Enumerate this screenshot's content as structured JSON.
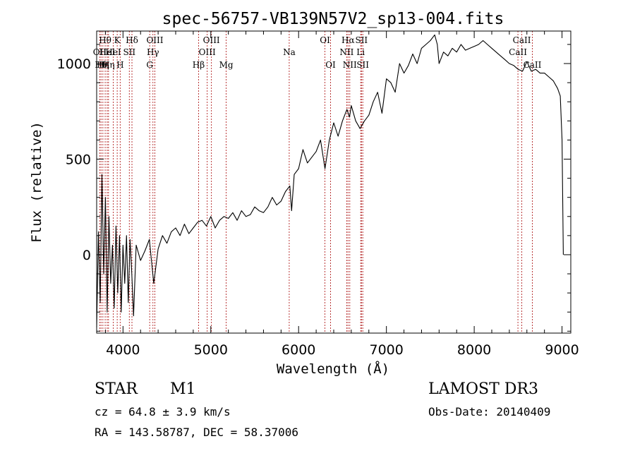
{
  "chart_data": {
    "type": "line",
    "title": "spec-56757-VB139N57V2_sp13-004.fits",
    "xlabel": "Wavelength (Å)",
    "ylabel": "Flux (relative)",
    "xlim": [
      3700,
      9100
    ],
    "ylim": [
      -410,
      1170
    ],
    "x_ticks": [
      4000,
      5000,
      6000,
      7000,
      8000,
      9000
    ],
    "y_ticks": [
      0,
      500,
      1000
    ],
    "x_tick_labels": [
      "4000",
      "5000",
      "6000",
      "7000",
      "8000",
      "9000"
    ],
    "y_tick_labels": [
      "0",
      "500",
      "1000"
    ],
    "series": [
      {
        "name": "flux",
        "x": [
          3700,
          3720,
          3740,
          3760,
          3780,
          3800,
          3820,
          3840,
          3860,
          3880,
          3900,
          3920,
          3940,
          3960,
          3980,
          4000,
          4020,
          4040,
          4060,
          4080,
          4100,
          4120,
          4150,
          4200,
          4250,
          4300,
          4350,
          4400,
          4450,
          4500,
          4550,
          4600,
          4650,
          4700,
          4750,
          4800,
          4850,
          4900,
          4950,
          5000,
          5050,
          5100,
          5150,
          5200,
          5250,
          5300,
          5350,
          5400,
          5450,
          5500,
          5550,
          5600,
          5650,
          5700,
          5750,
          5800,
          5850,
          5900,
          5920,
          5950,
          6000,
          6050,
          6100,
          6150,
          6200,
          6250,
          6300,
          6350,
          6400,
          6450,
          6500,
          6550,
          6580,
          6600,
          6650,
          6700,
          6750,
          6800,
          6850,
          6900,
          6950,
          7000,
          7050,
          7100,
          7150,
          7200,
          7250,
          7300,
          7350,
          7400,
          7450,
          7500,
          7550,
          7580,
          7600,
          7650,
          7700,
          7750,
          7800,
          7850,
          7900,
          7950,
          8000,
          8050,
          8100,
          8150,
          8200,
          8250,
          8300,
          8350,
          8400,
          8450,
          8500,
          8550,
          8600,
          8650,
          8700,
          8750,
          8800,
          8850,
          8900,
          8950,
          8980,
          9000,
          9010,
          9015
        ],
        "y": [
          -380,
          120,
          -250,
          420,
          -100,
          300,
          -300,
          200,
          -150,
          50,
          -280,
          150,
          -200,
          100,
          -300,
          50,
          -150,
          100,
          -250,
          80,
          -100,
          -320,
          50,
          -30,
          20,
          80,
          -150,
          30,
          100,
          60,
          120,
          140,
          100,
          160,
          110,
          140,
          170,
          180,
          150,
          200,
          140,
          180,
          200,
          190,
          220,
          180,
          230,
          200,
          210,
          250,
          230,
          220,
          250,
          300,
          260,
          280,
          330,
          360,
          230,
          420,
          450,
          550,
          480,
          510,
          540,
          600,
          450,
          600,
          690,
          620,
          700,
          760,
          720,
          780,
          700,
          660,
          700,
          730,
          800,
          850,
          740,
          920,
          900,
          850,
          1000,
          950,
          990,
          1050,
          1000,
          1080,
          1100,
          1120,
          1150,
          1100,
          1000,
          1060,
          1040,
          1080,
          1060,
          1100,
          1070,
          1080,
          1090,
          1100,
          1120,
          1100,
          1080,
          1060,
          1040,
          1020,
          1000,
          990,
          970,
          960,
          1010,
          960,
          970,
          950,
          950,
          930,
          910,
          870,
          830,
          600,
          200,
          0
        ]
      }
    ],
    "lines": [
      {
        "wl": 3735,
        "label": "OII",
        "row": 2
      },
      {
        "wl": 3750,
        "label": "Hθ",
        "row": 3
      },
      {
        "wl": 3771,
        "label": "Hη",
        "row": 3
      },
      {
        "wl": 3797,
        "label": "Hθ",
        "row": 1
      },
      {
        "wl": 3820,
        "label": "HeI",
        "row": 2
      },
      {
        "wl": 3835,
        "label": "Hη",
        "row": 3
      },
      {
        "wl": 3889,
        "label": "HeI",
        "row": 2
      },
      {
        "wl": 3934,
        "label": "K",
        "row": 1
      },
      {
        "wl": 3968,
        "label": "H",
        "row": 3
      },
      {
        "wl": 4072,
        "label": "SII",
        "row": 2
      },
      {
        "wl": 4102,
        "label": "Hδ",
        "row": 1
      },
      {
        "wl": 4304,
        "label": "G",
        "row": 3
      },
      {
        "wl": 4341,
        "label": "Hγ",
        "row": 2
      },
      {
        "wl": 4363,
        "label": "OIII",
        "row": 1
      },
      {
        "wl": 4861,
        "label": "Hβ",
        "row": 3
      },
      {
        "wl": 4959,
        "label": "OIII",
        "row": 2
      },
      {
        "wl": 5007,
        "label": "OIII",
        "row": 1
      },
      {
        "wl": 5175,
        "label": "Mg",
        "row": 3
      },
      {
        "wl": 5893,
        "label": "Na",
        "row": 2
      },
      {
        "wl": 6300,
        "label": "OI",
        "row": 1
      },
      {
        "wl": 6364,
        "label": "OI",
        "row": 3
      },
      {
        "wl": 6548,
        "label": "NII",
        "row": 2
      },
      {
        "wl": 6563,
        "label": "Hα",
        "row": 1
      },
      {
        "wl": 6583,
        "label": "NII",
        "row": 3
      },
      {
        "wl": 6707,
        "label": "Li",
        "row": 2
      },
      {
        "wl": 6716,
        "label": "SII",
        "row": 1
      },
      {
        "wl": 6731,
        "label": "SII",
        "row": 3
      },
      {
        "wl": 8498,
        "label": "CaII",
        "row": 2
      },
      {
        "wl": 8542,
        "label": "CaII",
        "row": 1
      },
      {
        "wl": 8662,
        "label": "CaII",
        "row": 3
      }
    ]
  },
  "info": {
    "object_class": "STAR",
    "subclass": "M1",
    "cz": "cz = 64.8 ± 3.9 km/s",
    "coords": "RA = 143.58787, DEC =  58.37006",
    "survey": "LAMOST DR3",
    "obs_date": "Obs-Date: 20140409"
  }
}
